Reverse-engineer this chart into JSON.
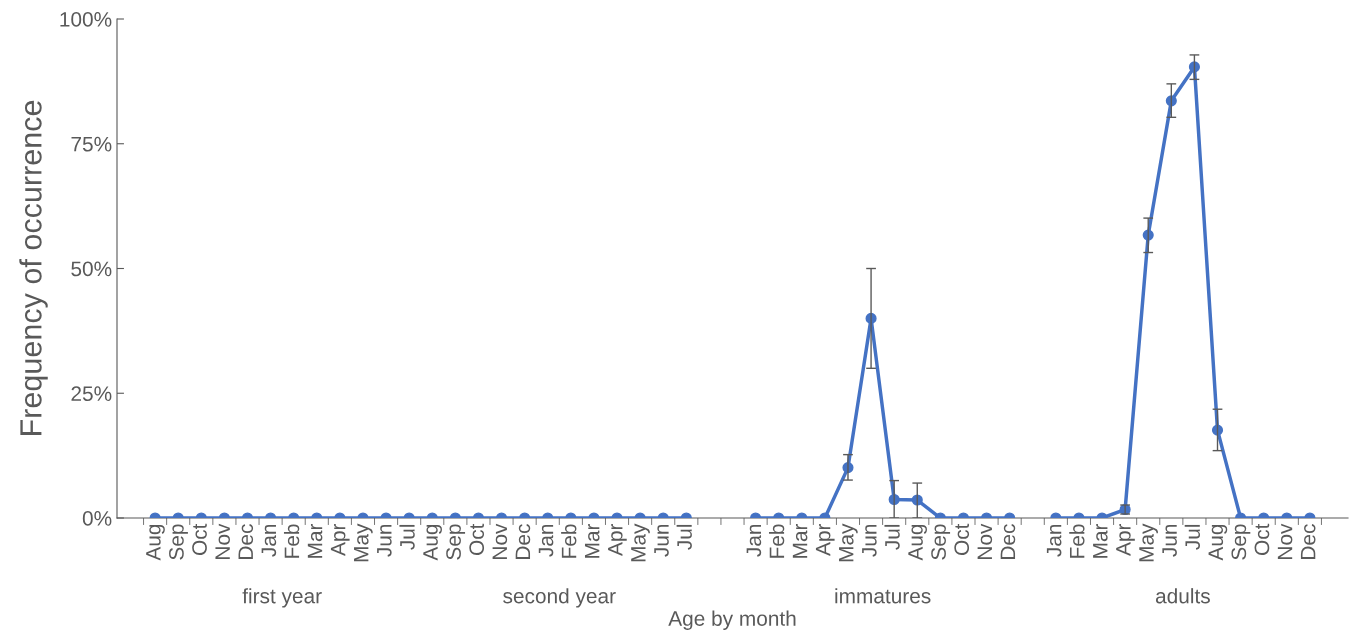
{
  "chart_data": {
    "type": "line",
    "xlabel": "Age by month",
    "ylabel": "Frequency of occurrence",
    "categories": [
      "Aug",
      "Sep",
      "Oct",
      "Nov",
      "Dec",
      "Jan",
      "Feb",
      "Mar",
      "Apr",
      "May",
      "Jun",
      "Jul",
      "Aug",
      "Sep",
      "Oct",
      "Nov",
      "Dec",
      "Jan",
      "Feb",
      "Mar",
      "Apr",
      "May",
      "Jun",
      "Jul",
      null,
      null,
      "Jan",
      "Feb",
      "Mar",
      "Apr",
      "May",
      "Jun",
      "Jul",
      "Aug",
      "Sep",
      "Oct",
      "Nov",
      "Dec",
      null,
      "Jan",
      "Feb",
      "Mar",
      "Apr",
      "May",
      "Jun",
      "Jul",
      "Aug",
      "Sep",
      "Oct",
      "Nov",
      "Dec"
    ],
    "series": [
      {
        "color": "#4472c4",
        "values": [
          0,
          0,
          0,
          0,
          0,
          0,
          0,
          0,
          0,
          0,
          0,
          0,
          0,
          0,
          0,
          0,
          0,
          0,
          0,
          0,
          0,
          0,
          0,
          0,
          null,
          null,
          0,
          0,
          0,
          0,
          10.1,
          40,
          3.7,
          3.6,
          0,
          0,
          0,
          0,
          null,
          0,
          0,
          0,
          1.7,
          56.7,
          83.6,
          90.4,
          17.6,
          0,
          0,
          0,
          0
        ],
        "errors": [
          null,
          null,
          null,
          null,
          null,
          null,
          null,
          null,
          null,
          null,
          null,
          null,
          null,
          null,
          null,
          null,
          null,
          null,
          null,
          null,
          null,
          null,
          null,
          null,
          null,
          null,
          null,
          null,
          null,
          null,
          [
            7.6,
            12.7
          ],
          [
            30,
            50
          ],
          [
            0,
            7.5
          ],
          [
            0,
            7.0
          ],
          null,
          null,
          null,
          null,
          null,
          null,
          null,
          null,
          [
            0.8,
            2.6
          ],
          [
            53.2,
            60.1
          ],
          [
            80.3,
            87.0
          ],
          [
            87.9,
            92.8
          ],
          [
            13.5,
            21.8
          ],
          null,
          null,
          null,
          null
        ]
      }
    ],
    "ylim": [
      0,
      100
    ],
    "yticks": [
      {
        "value": 0,
        "label": "0%"
      },
      {
        "value": 25,
        "label": "25%"
      },
      {
        "value": 50,
        "label": "50%"
      },
      {
        "value": 75,
        "label": "75%"
      },
      {
        "value": 100,
        "label": "100%"
      }
    ],
    "grid": false,
    "legend": false,
    "marker": "circle",
    "line_style": "solid",
    "annotations": [
      "first year",
      "second year",
      "immatures",
      "adults"
    ]
  }
}
